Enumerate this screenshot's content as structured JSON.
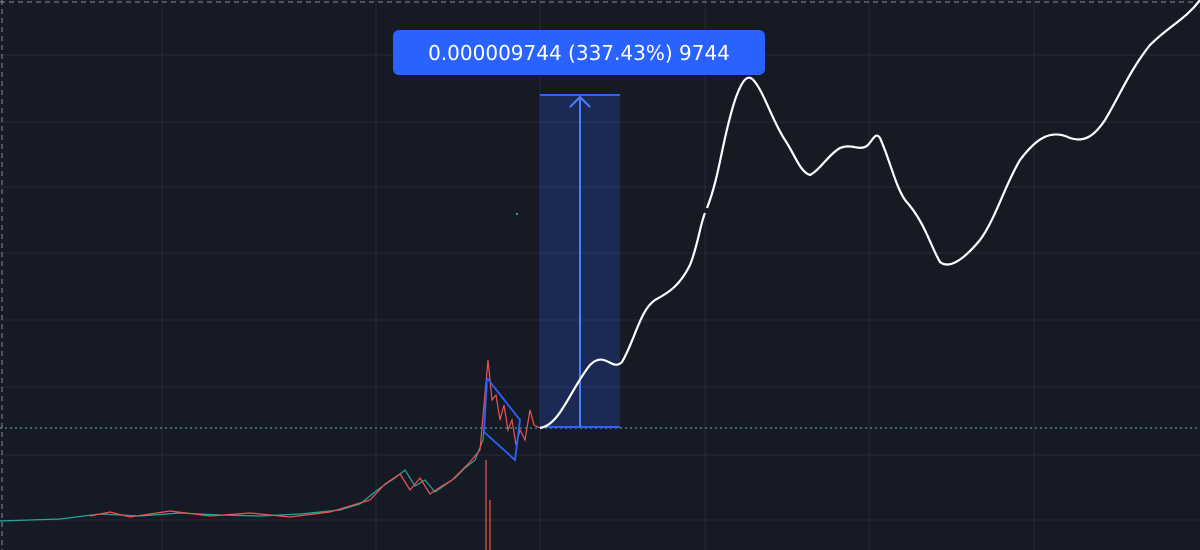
{
  "measure_tool": {
    "label": "0.000009744 (337.43%) 9744"
  }
}
